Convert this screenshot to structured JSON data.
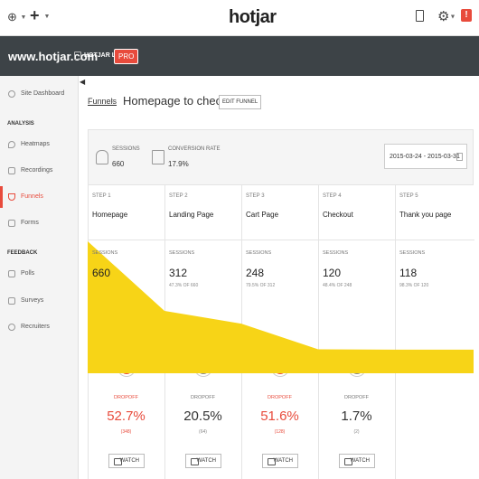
{
  "topbar": {
    "logo_text": "hotjar",
    "logo_dot": "",
    "notification": "!",
    "icons": [
      "globe-icon",
      "plus-icon",
      "document-icon",
      "gear-icon",
      "notification-icon"
    ]
  },
  "sitebar": {
    "site": "www.hotjar.com",
    "org": "HOTJAR LTD.",
    "plan": "PRO"
  },
  "sidebar": {
    "dashboard": "Site Dashboard",
    "analysis_head": "ANALYSIS",
    "heatmaps": "Heatmaps",
    "recordings": "Recordings",
    "funnels": "Funnels",
    "forms": "Forms",
    "feedback_head": "FEEDBACK",
    "polls": "Polls",
    "surveys": "Surveys",
    "recruiters": "Recruiters"
  },
  "header": {
    "breadcrumb": "Funnels",
    "title": "Homepage to checkout",
    "edit_label": "EDIT FUNNEL"
  },
  "stats": {
    "sessions_label": "SESSIONS",
    "sessions_value": "660",
    "conversion_label": "CONVERSION RATE",
    "conversion_value": "17.9%",
    "date_range": "2015-03-24 - 2015-03-31"
  },
  "steps": [
    {
      "num": "STEP 1",
      "name": "Homepage",
      "sess_label": "SESSIONS",
      "sessions": "660",
      "pct": ""
    },
    {
      "num": "STEP 2",
      "name": "Landing Page",
      "sess_label": "SESSIONS",
      "sessions": "312",
      "pct": "47.3% OF 660"
    },
    {
      "num": "STEP 3",
      "name": "Cart Page",
      "sess_label": "SESSIONS",
      "sessions": "248",
      "pct": "79.5% OF 312"
    },
    {
      "num": "STEP 4",
      "name": "Checkout",
      "sess_label": "SESSIONS",
      "sessions": "120",
      "pct": "48.4% OF 248"
    },
    {
      "num": "STEP 5",
      "name": "Thank you page",
      "sess_label": "SESSIONS",
      "sessions": "118",
      "pct": "98.3% OF 120"
    }
  ],
  "dropoffs": [
    {
      "label": "DROPOFF",
      "pct": "52.7%",
      "count": "(348)",
      "status": "high",
      "watch": "WATCH"
    },
    {
      "label": "DROPOFF",
      "pct": "20.5%",
      "count": "(64)",
      "status": "low",
      "watch": "WATCH"
    },
    {
      "label": "DROPOFF",
      "pct": "51.6%",
      "count": "(128)",
      "status": "high",
      "watch": "WATCH"
    },
    {
      "label": "DROPOFF",
      "pct": "1.7%",
      "count": "(2)",
      "status": "low",
      "watch": "WATCH"
    }
  ],
  "colors": {
    "accent": "#e84b3c",
    "funnel_fill": "#f7d417",
    "sitebar": "#3d4347"
  },
  "chart_data": {
    "type": "area",
    "categories": [
      "Homepage",
      "Landing Page",
      "Cart Page",
      "Checkout",
      "Thank you page"
    ],
    "values": [
      660,
      312,
      248,
      120,
      118
    ],
    "ylim": [
      0,
      660
    ]
  }
}
